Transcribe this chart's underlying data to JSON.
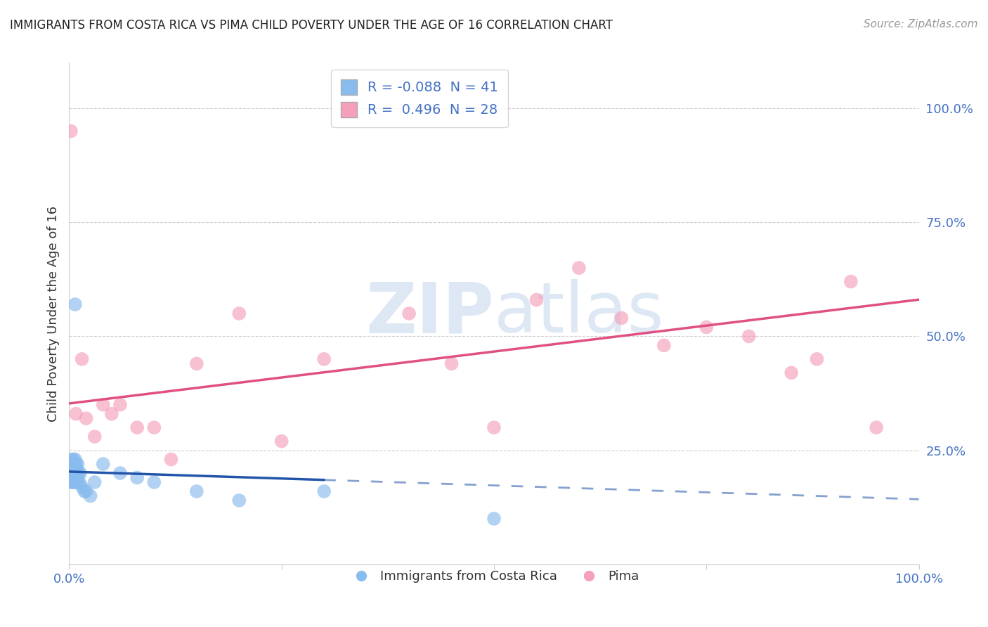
{
  "title": "IMMIGRANTS FROM COSTA RICA VS PIMA CHILD POVERTY UNDER THE AGE OF 16 CORRELATION CHART",
  "source": "Source: ZipAtlas.com",
  "ylabel": "Child Poverty Under the Age of 16",
  "legend_entry1_label": "R = -0.088  N = 41",
  "legend_entry2_label": "R =  0.496  N = 28",
  "legend_series1": "Immigrants from Costa Rica",
  "legend_series2": "Pima",
  "blue_color": "#88bbee",
  "pink_color": "#f4a0bb",
  "blue_line_color": "#2255aa",
  "pink_line_color": "#e05080",
  "r1": -0.088,
  "n1": 41,
  "r2": 0.496,
  "n2": 28,
  "right_ytick_color": "#4472c4",
  "grid_color": "#cccccc",
  "blue_x": [
    0.001,
    0.002,
    0.002,
    0.003,
    0.003,
    0.003,
    0.004,
    0.004,
    0.004,
    0.005,
    0.005,
    0.005,
    0.006,
    0.006,
    0.006,
    0.007,
    0.007,
    0.007,
    0.008,
    0.008,
    0.009,
    0.009,
    0.01,
    0.01,
    0.011,
    0.012,
    0.013,
    0.015,
    0.018,
    0.02,
    0.025,
    0.03,
    0.04,
    0.06,
    0.08,
    0.1,
    0.15,
    0.2,
    0.3,
    0.5,
    0.007
  ],
  "blue_y": [
    0.2,
    0.19,
    0.22,
    0.18,
    0.21,
    0.23,
    0.2,
    0.22,
    0.18,
    0.21,
    0.19,
    0.23,
    0.2,
    0.22,
    0.18,
    0.21,
    0.19,
    0.23,
    0.2,
    0.22,
    0.18,
    0.21,
    0.19,
    0.22,
    0.2,
    0.18,
    0.2,
    0.17,
    0.16,
    0.16,
    0.15,
    0.18,
    0.22,
    0.2,
    0.19,
    0.18,
    0.16,
    0.14,
    0.16,
    0.1,
    0.57
  ],
  "pink_x": [
    0.002,
    0.008,
    0.015,
    0.02,
    0.03,
    0.04,
    0.05,
    0.06,
    0.08,
    0.1,
    0.12,
    0.15,
    0.2,
    0.25,
    0.3,
    0.4,
    0.45,
    0.5,
    0.55,
    0.6,
    0.65,
    0.7,
    0.75,
    0.8,
    0.85,
    0.88,
    0.92,
    0.95
  ],
  "pink_y": [
    0.95,
    0.33,
    0.45,
    0.32,
    0.28,
    0.35,
    0.33,
    0.35,
    0.3,
    0.3,
    0.23,
    0.44,
    0.55,
    0.27,
    0.45,
    0.55,
    0.44,
    0.3,
    0.58,
    0.65,
    0.54,
    0.48,
    0.52,
    0.5,
    0.42,
    0.45,
    0.62,
    0.3
  ]
}
